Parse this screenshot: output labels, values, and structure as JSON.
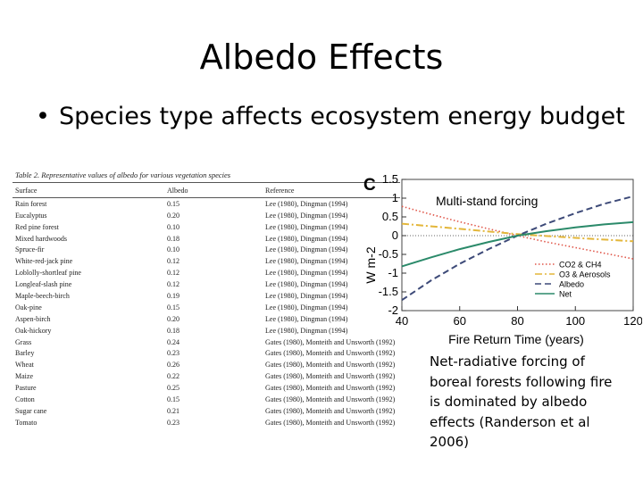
{
  "slide": {
    "title": "Albedo Effects",
    "bullet": "Species type affects ecosystem energy budget"
  },
  "table": {
    "caption": "Table 2. Representative values of albedo for various vegetation species",
    "headers": [
      "Surface",
      "Albedo",
      "Reference"
    ],
    "rows": [
      [
        "Rain forest",
        "0.15",
        "Lee (1980), Dingman (1994)"
      ],
      [
        "Eucalyptus",
        "0.20",
        "Lee (1980), Dingman (1994)"
      ],
      [
        "Red pine forest",
        "0.10",
        "Lee (1980), Dingman (1994)"
      ],
      [
        "Mixed hardwoods",
        "0.18",
        "Lee (1980), Dingman (1994)"
      ],
      [
        "Spruce-fir",
        "0.10",
        "Lee (1980), Dingman (1994)"
      ],
      [
        "White-red-jack pine",
        "0.12",
        "Lee (1980), Dingman (1994)"
      ],
      [
        "Loblolly-shortleaf pine",
        "0.12",
        "Lee (1980), Dingman (1994)"
      ],
      [
        "Longleaf-slash pine",
        "0.12",
        "Lee (1980), Dingman (1994)"
      ],
      [
        "Maple-beech-birch",
        "0.19",
        "Lee (1980), Dingman (1994)"
      ],
      [
        "Oak-pine",
        "0.15",
        "Lee (1980), Dingman (1994)"
      ],
      [
        "Aspen-birch",
        "0.20",
        "Lee (1980), Dingman (1994)"
      ],
      [
        "Oak-hickory",
        "0.18",
        "Lee (1980), Dingman (1994)"
      ],
      [
        "Grass",
        "0.24",
        "Gates (1980), Monteith and Unsworth (1992)"
      ],
      [
        "Barley",
        "0.23",
        "Gates (1980), Monteith and Unsworth (1992)"
      ],
      [
        "Wheat",
        "0.26",
        "Gates (1980), Monteith and Unsworth (1992)"
      ],
      [
        "Maize",
        "0.22",
        "Gates (1980), Monteith and Unsworth (1992)"
      ],
      [
        "Pasture",
        "0.25",
        "Gates (1980), Monteith and Unsworth (1992)"
      ],
      [
        "Cotton",
        "0.15",
        "Gates (1980), Monteith and Unsworth (1992)"
      ],
      [
        "Sugar cane",
        "0.21",
        "Gates (1980), Monteith and Unsworth (1992)"
      ],
      [
        "Tomato",
        "0.23",
        "Gates (1980), Monteith and Unsworth (1992)"
      ]
    ]
  },
  "chart_data": {
    "type": "line",
    "panel_label": "C",
    "title": "Multi-stand forcing",
    "xlabel": "Fire Return Time (years)",
    "ylabel": "W m-2",
    "xlim": [
      40,
      120
    ],
    "ylim": [
      -2.0,
      1.5
    ],
    "xticks": [
      40,
      60,
      80,
      100,
      120
    ],
    "yticks": [
      1.5,
      1.0,
      0.5,
      0.0,
      -0.5,
      -1.0,
      -1.5,
      -2.0
    ],
    "legend_position": "bottom-right",
    "series": [
      {
        "name": "CO2 & CH4",
        "style": "dotted",
        "color": "#e0574a",
        "x": [
          40,
          50,
          60,
          70,
          80,
          90,
          100,
          110,
          120
        ],
        "y": [
          0.78,
          0.57,
          0.37,
          0.18,
          0.0,
          -0.17,
          -0.32,
          -0.47,
          -0.62
        ]
      },
      {
        "name": "O3 & Aerosols",
        "style": "dashdot",
        "color": "#e3b63a",
        "x": [
          40,
          60,
          80,
          100,
          120
        ],
        "y": [
          0.32,
          0.18,
          0.04,
          -0.06,
          -0.15
        ]
      },
      {
        "name": "Albedo",
        "style": "dashed",
        "color": "#3d4a78",
        "x": [
          40,
          50,
          60,
          70,
          80,
          90,
          100,
          110,
          120
        ],
        "y": [
          -1.72,
          -1.2,
          -0.75,
          -0.36,
          0.0,
          0.32,
          0.6,
          0.85,
          1.05
        ]
      },
      {
        "name": "Net",
        "style": "solid",
        "color": "#2b8a6a",
        "x": [
          40,
          50,
          60,
          70,
          80,
          90,
          100,
          110,
          120
        ],
        "y": [
          -0.82,
          -0.58,
          -0.36,
          -0.17,
          0.0,
          0.12,
          0.22,
          0.3,
          0.36
        ]
      }
    ]
  },
  "caption": {
    "lines": [
      "Net-radiative forcing of",
      "boreal forests following fire",
      "is dominated by albedo",
      "effects (Randerson et al",
      "2006)"
    ]
  }
}
